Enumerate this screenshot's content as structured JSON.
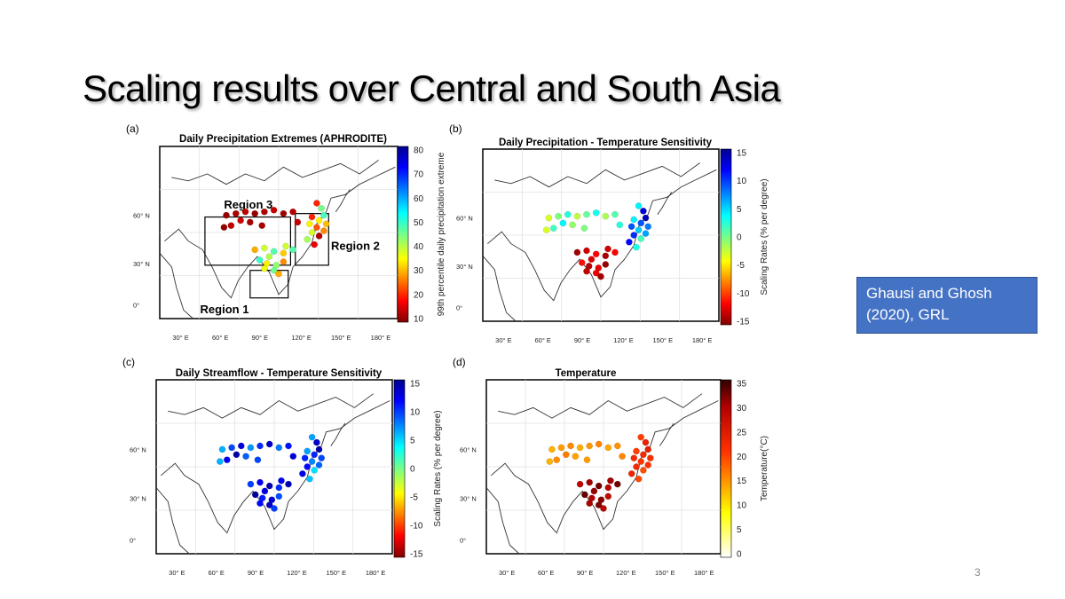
{
  "slide": {
    "title": "Scaling results over Central and South Asia",
    "citation": "Ghausi and Ghosh (2020), GRL",
    "page_number": "3"
  },
  "panels": [
    {
      "id": "a",
      "letter": "(a)",
      "title": "Daily Precipitation Extremes (APHRODITE)",
      "colorbar_label": "99th percentile daily precipitation extreme",
      "colorbar_ticks": [
        "80",
        "70",
        "60",
        "50",
        "40",
        "30",
        "20",
        "10"
      ],
      "colorbar_scheme": "jet",
      "lat_labels": [
        "60° N",
        "30° N",
        "0°"
      ],
      "lon_labels": [
        "30° E",
        "60° E",
        "90° E",
        "120° E",
        "150° E",
        "180° E"
      ],
      "regions": [
        "Region 3",
        "Region 2",
        "Region 1"
      ]
    },
    {
      "id": "b",
      "letter": "(b)",
      "title": "Daily Precipitation - Temperature Sensitivity",
      "colorbar_label": "Scaling Rates (% per degree)",
      "colorbar_ticks": [
        "15",
        "10",
        "5",
        "0",
        "-5",
        "-10",
        "-15"
      ],
      "colorbar_scheme": "jet",
      "lat_labels": [
        "60° N",
        "30° N",
        "0°"
      ],
      "lon_labels": [
        "30° E",
        "60° E",
        "90° E",
        "120° E",
        "150° E",
        "180° E"
      ]
    },
    {
      "id": "c",
      "letter": "(c)",
      "title": "Daily Streamflow - Temperature Sensitivity",
      "colorbar_label": "Scaling Rates (% per degree)",
      "colorbar_ticks": [
        "15",
        "10",
        "5",
        "0",
        "-5",
        "-10",
        "-15"
      ],
      "colorbar_scheme": "jet",
      "lat_labels": [
        "60° N",
        "30° N",
        "0°"
      ],
      "lon_labels": [
        "30° E",
        "60° E",
        "90° E",
        "120° E",
        "150° E",
        "180° E"
      ]
    },
    {
      "id": "d",
      "letter": "(d)",
      "title": "Temperature",
      "colorbar_label": "Temperature(°C)",
      "colorbar_ticks": [
        "35",
        "30",
        "25",
        "20",
        "15",
        "10",
        "5",
        "0"
      ],
      "colorbar_scheme": "hot",
      "lat_labels": [
        "60° N",
        "30° N",
        "0°"
      ],
      "lon_labels": [
        "30° E",
        "60° E",
        "90° E",
        "120° E",
        "150° E",
        "180° E"
      ]
    }
  ],
  "colors": {
    "citation_bg": "#4472c4",
    "map_outline": "#000000"
  }
}
